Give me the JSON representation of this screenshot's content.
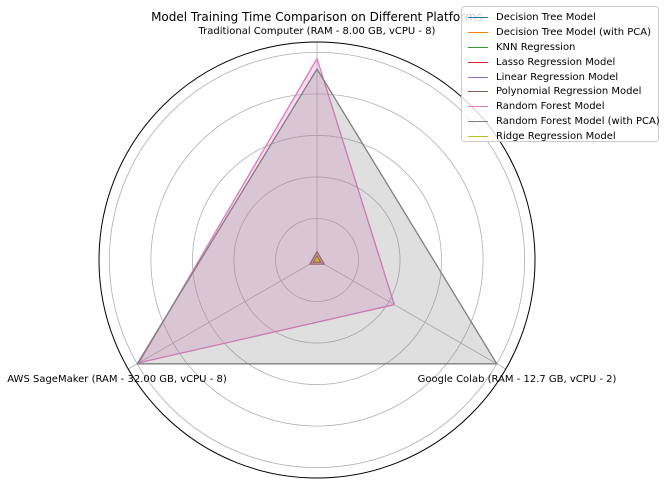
{
  "chart_data": {
    "type": "radar",
    "title": "Model Training Time Comparison on Different Platforms",
    "axes": [
      "Traditional Computer (RAM - 8.00 GB, vCPU - 8)",
      "Google Colab (RAM - 12.7 GB, vCPU - 2)",
      "AWS SageMaker (RAM - 32.00 GB, vCPU - 8)"
    ],
    "rmax": 1.05,
    "grid_rings": [
      0.2,
      0.4,
      0.6,
      0.8,
      1.0
    ],
    "grid": true,
    "legend_position": "top-right",
    "series": [
      {
        "name": "Decision Tree Model",
        "color": "#1f77b4",
        "values": [
          0.01,
          0.01,
          0.01
        ]
      },
      {
        "name": "Decision Tree Model (with PCA)",
        "color": "#ff7f0e",
        "values": [
          0.01,
          0.01,
          0.01
        ]
      },
      {
        "name": "KNN Regression",
        "color": "#2ca02c",
        "values": [
          0.02,
          0.02,
          0.02
        ]
      },
      {
        "name": "Lasso Regression Model",
        "color": "#d62728",
        "values": [
          0.02,
          0.02,
          0.02
        ]
      },
      {
        "name": "Linear Regression Model",
        "color": "#9467bd",
        "values": [
          0.01,
          0.01,
          0.01
        ]
      },
      {
        "name": "Polynomial Regression Model",
        "color": "#8c564b",
        "values": [
          0.04,
          0.04,
          0.04
        ]
      },
      {
        "name": "Random Forest Model",
        "color": "#e377c2",
        "values": [
          0.97,
          0.43,
          0.99
        ]
      },
      {
        "name": "Random Forest Model (with PCA)",
        "color": "#7f7f7f",
        "values": [
          0.92,
          1.0,
          1.0
        ]
      },
      {
        "name": "Ridge Regression Model",
        "color": "#bcbd22",
        "values": [
          0.01,
          0.01,
          0.01
        ]
      }
    ]
  }
}
